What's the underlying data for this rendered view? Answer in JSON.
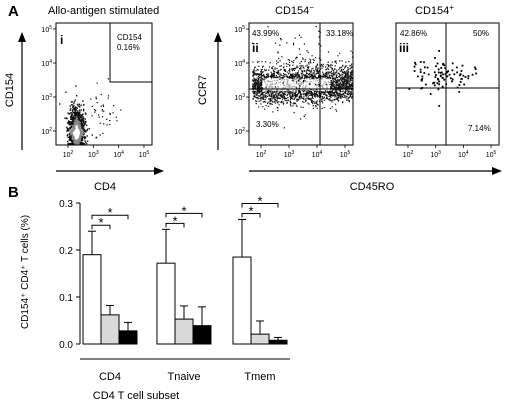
{
  "panel_a": {
    "letter": "A",
    "plots": [
      {
        "title": "Allo-antigen stimulated",
        "title_sup": "",
        "roman": "i",
        "xlabel": "CD4",
        "ylabel": "CD154",
        "gate_label": "CD154",
        "quadrant_labels": [
          {
            "text": "0.16%",
            "pos": "top-right"
          }
        ],
        "x_ticks": [
          "10^2",
          "10^3",
          "10^4",
          "10^5"
        ],
        "y_ticks": [
          "10^2",
          "10^3",
          "10^4",
          "10^5"
        ]
      },
      {
        "title": "CD154",
        "title_sup": "−",
        "roman": "ii",
        "xlabel": "CD45RO",
        "ylabel": "CCR7",
        "quadrant_labels": [
          {
            "text": "43.99%",
            "pos": "top-left"
          },
          {
            "text": "33.18%",
            "pos": "top-right"
          },
          {
            "text": "3.30%",
            "pos": "bottom-left"
          }
        ],
        "x_ticks": [
          "10^2",
          "10^3",
          "10^4",
          "10^5"
        ],
        "y_ticks": [
          "10^2",
          "10^3",
          "10^4",
          "10^5"
        ]
      },
      {
        "title": "CD154",
        "title_sup": "+",
        "roman": "iii",
        "xlabel": "",
        "ylabel": "",
        "quadrant_labels": [
          {
            "text": "42.86%",
            "pos": "top-left"
          },
          {
            "text": "50%",
            "pos": "top-right"
          },
          {
            "text": "7.14%",
            "pos": "bottom-right"
          }
        ],
        "x_ticks": [
          "10^2",
          "10^3",
          "10^4",
          "10^5"
        ],
        "y_ticks": []
      }
    ]
  },
  "panel_b": {
    "letter": "B",
    "ylabel": "CD154⁺ CD4⁺ T cells (%)",
    "xlabel": "CD4 T cell subset",
    "significance_marker": "*"
  },
  "chart_data": {
    "type": "bar",
    "categories": [
      "CD4",
      "Tnaive",
      "Tmem"
    ],
    "series": [
      {
        "values": [
          0.19,
          0.172,
          0.185
        ],
        "errors": [
          0.05,
          0.072,
          0.08
        ],
        "color": "#ffffff"
      },
      {
        "values": [
          0.062,
          0.053,
          0.021
        ],
        "errors": [
          0.02,
          0.028,
          0.028
        ],
        "color": "#d9d9d9"
      },
      {
        "values": [
          0.028,
          0.039,
          0.008
        ],
        "errors": [
          0.018,
          0.04,
          0.006
        ],
        "color": "#000000"
      }
    ],
    "ylim": [
      0,
      0.3
    ],
    "y_ticks": [
      "0.0",
      "0.1",
      "0.2",
      "0.3"
    ],
    "significance": [
      {
        "category": 0,
        "from": 0,
        "to": 1
      },
      {
        "category": 0,
        "from": 0,
        "to": 2
      },
      {
        "category": 1,
        "from": 0,
        "to": 1
      },
      {
        "category": 1,
        "from": 0,
        "to": 2
      },
      {
        "category": 2,
        "from": 0,
        "to": 1
      },
      {
        "category": 2,
        "from": 0,
        "to": 2
      }
    ]
  }
}
